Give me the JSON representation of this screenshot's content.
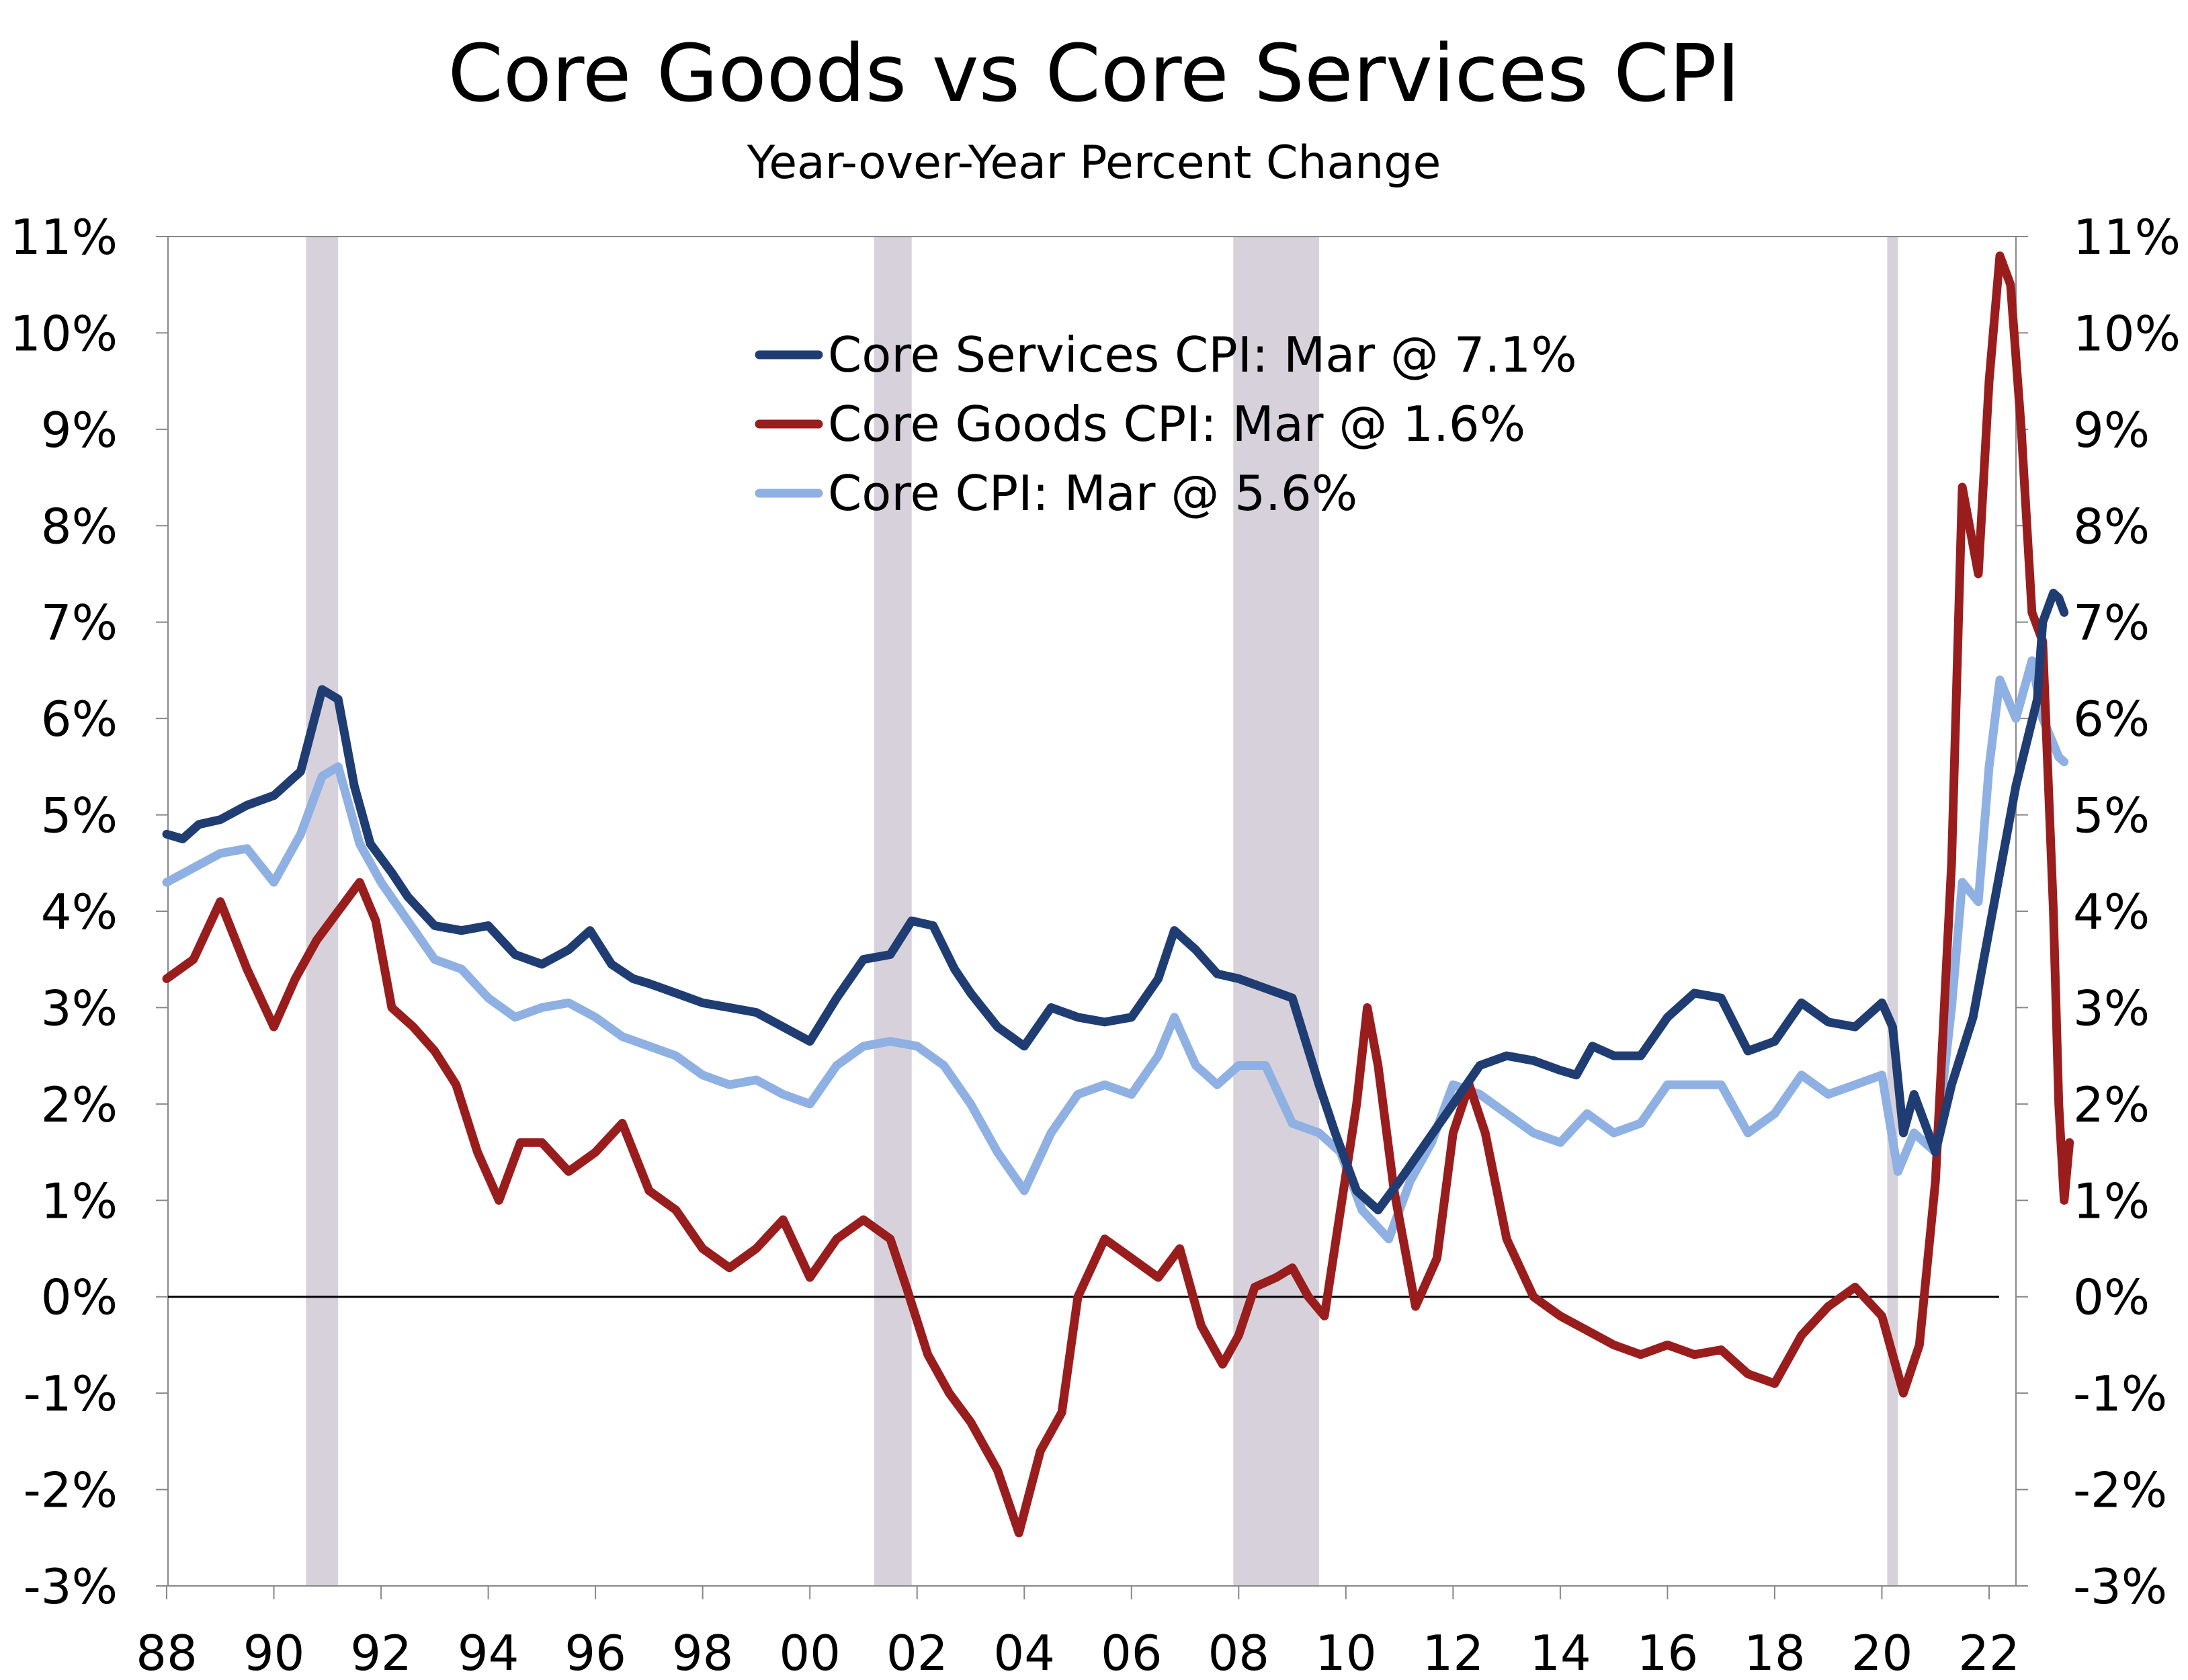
{
  "chart_data": {
    "type": "line",
    "title": "Core Goods vs Core Services CPI",
    "subtitle": "Year-over-Year Percent Change",
    "ylim": [
      -3,
      11
    ],
    "y_ticks": [
      -3,
      -2,
      -1,
      0,
      1,
      2,
      3,
      4,
      5,
      6,
      7,
      8,
      9,
      10,
      11
    ],
    "y_tick_labels": [
      "-3%",
      "-2%",
      "-1%",
      "0%",
      "1%",
      "2%",
      "3%",
      "4%",
      "5%",
      "6%",
      "7%",
      "8%",
      "9%",
      "10%",
      "11%"
    ],
    "xlim": [
      1988.0,
      2023.8
    ],
    "x_ticks": [
      1988,
      1990,
      1992,
      1994,
      1996,
      1998,
      2000,
      2002,
      2004,
      2006,
      2008,
      2010,
      2012,
      2014,
      2016,
      2018,
      2020,
      2022
    ],
    "x_tick_labels": [
      "88",
      "90",
      "92",
      "94",
      "96",
      "98",
      "00",
      "02",
      "04",
      "06",
      "08",
      "10",
      "12",
      "14",
      "16",
      "18",
      "20",
      "22"
    ],
    "legend_position": "top-center",
    "recessions": [
      [
        1990.6,
        1991.2
      ],
      [
        2001.2,
        2001.9
      ],
      [
        2007.9,
        2009.5
      ],
      [
        2020.1,
        2020.3
      ]
    ],
    "zero_line": true,
    "series": [
      {
        "name": "Core Services CPI: Mar @ 7.1%",
        "color": "#1f3d73",
        "points": [
          [
            1988.0,
            4.8
          ],
          [
            1988.3,
            4.75
          ],
          [
            1988.6,
            4.9
          ],
          [
            1989.0,
            4.95
          ],
          [
            1989.5,
            5.1
          ],
          [
            1990.0,
            5.2
          ],
          [
            1990.5,
            5.45
          ],
          [
            1990.9,
            6.3
          ],
          [
            1991.2,
            6.2
          ],
          [
            1991.5,
            5.3
          ],
          [
            1991.8,
            4.7
          ],
          [
            1992.2,
            4.4
          ],
          [
            1992.5,
            4.15
          ],
          [
            1993.0,
            3.85
          ],
          [
            1993.5,
            3.8
          ],
          [
            1994.0,
            3.85
          ],
          [
            1994.5,
            3.55
          ],
          [
            1995.0,
            3.45
          ],
          [
            1995.5,
            3.6
          ],
          [
            1995.9,
            3.8
          ],
          [
            1996.3,
            3.45
          ],
          [
            1996.7,
            3.3
          ],
          [
            1997.0,
            3.25
          ],
          [
            1997.5,
            3.15
          ],
          [
            1998.0,
            3.05
          ],
          [
            1998.5,
            3.0
          ],
          [
            1999.0,
            2.95
          ],
          [
            1999.5,
            2.8
          ],
          [
            2000.0,
            2.65
          ],
          [
            2000.5,
            3.1
          ],
          [
            2001.0,
            3.5
          ],
          [
            2001.5,
            3.55
          ],
          [
            2001.9,
            3.9
          ],
          [
            2002.3,
            3.85
          ],
          [
            2002.7,
            3.4
          ],
          [
            2003.0,
            3.15
          ],
          [
            2003.5,
            2.8
          ],
          [
            2004.0,
            2.6
          ],
          [
            2004.5,
            3.0
          ],
          [
            2005.0,
            2.9
          ],
          [
            2005.5,
            2.85
          ],
          [
            2006.0,
            2.9
          ],
          [
            2006.5,
            3.3
          ],
          [
            2006.8,
            3.8
          ],
          [
            2007.2,
            3.6
          ],
          [
            2007.6,
            3.35
          ],
          [
            2008.0,
            3.3
          ],
          [
            2008.5,
            3.2
          ],
          [
            2009.0,
            3.1
          ],
          [
            2009.5,
            2.2
          ],
          [
            2009.8,
            1.7
          ],
          [
            2010.2,
            1.1
          ],
          [
            2010.6,
            0.9
          ],
          [
            2011.0,
            1.2
          ],
          [
            2011.5,
            1.6
          ],
          [
            2012.0,
            2.0
          ],
          [
            2012.5,
            2.4
          ],
          [
            2013.0,
            2.5
          ],
          [
            2013.5,
            2.45
          ],
          [
            2014.0,
            2.35
          ],
          [
            2014.3,
            2.3
          ],
          [
            2014.6,
            2.6
          ],
          [
            2015.0,
            2.5
          ],
          [
            2015.5,
            2.5
          ],
          [
            2016.0,
            2.9
          ],
          [
            2016.5,
            3.15
          ],
          [
            2017.0,
            3.1
          ],
          [
            2017.5,
            2.55
          ],
          [
            2018.0,
            2.65
          ],
          [
            2018.5,
            3.05
          ],
          [
            2019.0,
            2.85
          ],
          [
            2019.5,
            2.8
          ],
          [
            2020.0,
            3.05
          ],
          [
            2020.2,
            2.8
          ],
          [
            2020.4,
            1.7
          ],
          [
            2020.6,
            2.1
          ],
          [
            2021.0,
            1.5
          ],
          [
            2021.3,
            2.2
          ],
          [
            2021.7,
            2.9
          ],
          [
            2022.0,
            3.8
          ],
          [
            2022.5,
            5.3
          ],
          [
            2022.9,
            6.2
          ],
          [
            2023.0,
            7.0
          ],
          [
            2023.2,
            7.3
          ],
          [
            2023.3,
            7.25
          ],
          [
            2023.4,
            7.1
          ]
        ]
      },
      {
        "name": "Core Goods CPI: Mar @ 1.6%",
        "color": "#9a1d1d",
        "points": [
          [
            1988.0,
            3.3
          ],
          [
            1988.5,
            3.5
          ],
          [
            1989.0,
            4.1
          ],
          [
            1989.5,
            3.4
          ],
          [
            1990.0,
            2.8
          ],
          [
            1990.4,
            3.3
          ],
          [
            1990.8,
            3.7
          ],
          [
            1991.2,
            4.0
          ],
          [
            1991.6,
            4.3
          ],
          [
            1991.9,
            3.9
          ],
          [
            1992.2,
            3.0
          ],
          [
            1992.6,
            2.8
          ],
          [
            1993.0,
            2.55
          ],
          [
            1993.4,
            2.2
          ],
          [
            1993.8,
            1.5
          ],
          [
            1994.2,
            1.0
          ],
          [
            1994.6,
            1.6
          ],
          [
            1995.0,
            1.6
          ],
          [
            1995.5,
            1.3
          ],
          [
            1996.0,
            1.5
          ],
          [
            1996.5,
            1.8
          ],
          [
            1997.0,
            1.1
          ],
          [
            1997.5,
            0.9
          ],
          [
            1998.0,
            0.5
          ],
          [
            1998.5,
            0.3
          ],
          [
            1999.0,
            0.5
          ],
          [
            1999.5,
            0.8
          ],
          [
            2000.0,
            0.2
          ],
          [
            2000.5,
            0.6
          ],
          [
            2001.0,
            0.8
          ],
          [
            2001.5,
            0.6
          ],
          [
            2001.8,
            0.1
          ],
          [
            2002.2,
            -0.6
          ],
          [
            2002.6,
            -1.0
          ],
          [
            2003.0,
            -1.3
          ],
          [
            2003.5,
            -1.8
          ],
          [
            2003.9,
            -2.45
          ],
          [
            2004.3,
            -1.6
          ],
          [
            2004.7,
            -1.2
          ],
          [
            2005.0,
            0.0
          ],
          [
            2005.5,
            0.6
          ],
          [
            2006.0,
            0.4
          ],
          [
            2006.5,
            0.2
          ],
          [
            2006.9,
            0.5
          ],
          [
            2007.3,
            -0.3
          ],
          [
            2007.7,
            -0.7
          ],
          [
            2008.0,
            -0.4
          ],
          [
            2008.3,
            0.1
          ],
          [
            2008.7,
            0.2
          ],
          [
            2009.0,
            0.3
          ],
          [
            2009.3,
            0.0
          ],
          [
            2009.6,
            -0.2
          ],
          [
            2009.9,
            0.9
          ],
          [
            2010.2,
            2.0
          ],
          [
            2010.4,
            3.0
          ],
          [
            2010.6,
            2.4
          ],
          [
            2010.9,
            1.1
          ],
          [
            2011.3,
            -0.1
          ],
          [
            2011.7,
            0.4
          ],
          [
            2012.0,
            1.7
          ],
          [
            2012.3,
            2.2
          ],
          [
            2012.6,
            1.7
          ],
          [
            2013.0,
            0.6
          ],
          [
            2013.5,
            0.0
          ],
          [
            2014.0,
            -0.2
          ],
          [
            2014.5,
            -0.35
          ],
          [
            2015.0,
            -0.5
          ],
          [
            2015.5,
            -0.6
          ],
          [
            2016.0,
            -0.5
          ],
          [
            2016.5,
            -0.6
          ],
          [
            2017.0,
            -0.55
          ],
          [
            2017.5,
            -0.8
          ],
          [
            2018.0,
            -0.9
          ],
          [
            2018.5,
            -0.4
          ],
          [
            2019.0,
            -0.1
          ],
          [
            2019.5,
            0.1
          ],
          [
            2020.0,
            -0.2
          ],
          [
            2020.4,
            -1.0
          ],
          [
            2020.7,
            -0.5
          ],
          [
            2021.0,
            1.2
          ],
          [
            2021.3,
            4.5
          ],
          [
            2021.5,
            8.4
          ],
          [
            2021.8,
            7.5
          ],
          [
            2022.0,
            9.5
          ],
          [
            2022.2,
            10.8
          ],
          [
            2022.4,
            10.5
          ],
          [
            2022.6,
            9.0
          ],
          [
            2022.8,
            7.1
          ],
          [
            2023.0,
            6.8
          ],
          [
            2023.2,
            4.0
          ],
          [
            2023.3,
            2.0
          ],
          [
            2023.4,
            1.0
          ],
          [
            2023.5,
            1.6
          ]
        ]
      },
      {
        "name": "Core CPI: Mar @ 5.6%",
        "color": "#8fb0e3",
        "points": [
          [
            1988.0,
            4.3
          ],
          [
            1988.5,
            4.45
          ],
          [
            1989.0,
            4.6
          ],
          [
            1989.5,
            4.65
          ],
          [
            1990.0,
            4.3
          ],
          [
            1990.5,
            4.8
          ],
          [
            1990.9,
            5.4
          ],
          [
            1991.2,
            5.5
          ],
          [
            1991.6,
            4.7
          ],
          [
            1992.0,
            4.3
          ],
          [
            1992.5,
            3.9
          ],
          [
            1993.0,
            3.5
          ],
          [
            1993.5,
            3.4
          ],
          [
            1994.0,
            3.1
          ],
          [
            1994.5,
            2.9
          ],
          [
            1995.0,
            3.0
          ],
          [
            1995.5,
            3.05
          ],
          [
            1996.0,
            2.9
          ],
          [
            1996.5,
            2.7
          ],
          [
            1997.0,
            2.6
          ],
          [
            1997.5,
            2.5
          ],
          [
            1998.0,
            2.3
          ],
          [
            1998.5,
            2.2
          ],
          [
            1999.0,
            2.25
          ],
          [
            1999.5,
            2.1
          ],
          [
            2000.0,
            2.0
          ],
          [
            2000.5,
            2.4
          ],
          [
            2001.0,
            2.6
          ],
          [
            2001.5,
            2.65
          ],
          [
            2002.0,
            2.6
          ],
          [
            2002.5,
            2.4
          ],
          [
            2003.0,
            2.0
          ],
          [
            2003.5,
            1.5
          ],
          [
            2004.0,
            1.1
          ],
          [
            2004.5,
            1.7
          ],
          [
            2005.0,
            2.1
          ],
          [
            2005.5,
            2.2
          ],
          [
            2006.0,
            2.1
          ],
          [
            2006.5,
            2.5
          ],
          [
            2006.8,
            2.9
          ],
          [
            2007.2,
            2.4
          ],
          [
            2007.6,
            2.2
          ],
          [
            2008.0,
            2.4
          ],
          [
            2008.5,
            2.4
          ],
          [
            2009.0,
            1.8
          ],
          [
            2009.5,
            1.7
          ],
          [
            2009.9,
            1.5
          ],
          [
            2010.3,
            0.9
          ],
          [
            2010.8,
            0.6
          ],
          [
            2011.2,
            1.2
          ],
          [
            2011.6,
            1.6
          ],
          [
            2012.0,
            2.2
          ],
          [
            2012.5,
            2.1
          ],
          [
            2013.0,
            1.9
          ],
          [
            2013.5,
            1.7
          ],
          [
            2014.0,
            1.6
          ],
          [
            2014.5,
            1.9
          ],
          [
            2015.0,
            1.7
          ],
          [
            2015.5,
            1.8
          ],
          [
            2016.0,
            2.2
          ],
          [
            2016.5,
            2.2
          ],
          [
            2017.0,
            2.2
          ],
          [
            2017.5,
            1.7
          ],
          [
            2018.0,
            1.9
          ],
          [
            2018.5,
            2.3
          ],
          [
            2019.0,
            2.1
          ],
          [
            2019.5,
            2.2
          ],
          [
            2020.0,
            2.3
          ],
          [
            2020.3,
            1.3
          ],
          [
            2020.6,
            1.7
          ],
          [
            2021.0,
            1.5
          ],
          [
            2021.3,
            3.0
          ],
          [
            2021.5,
            4.3
          ],
          [
            2021.8,
            4.1
          ],
          [
            2022.0,
            5.5
          ],
          [
            2022.2,
            6.4
          ],
          [
            2022.5,
            6.0
          ],
          [
            2022.8,
            6.6
          ],
          [
            2023.0,
            6.0
          ],
          [
            2023.3,
            5.6
          ],
          [
            2023.4,
            5.55
          ]
        ]
      }
    ]
  }
}
